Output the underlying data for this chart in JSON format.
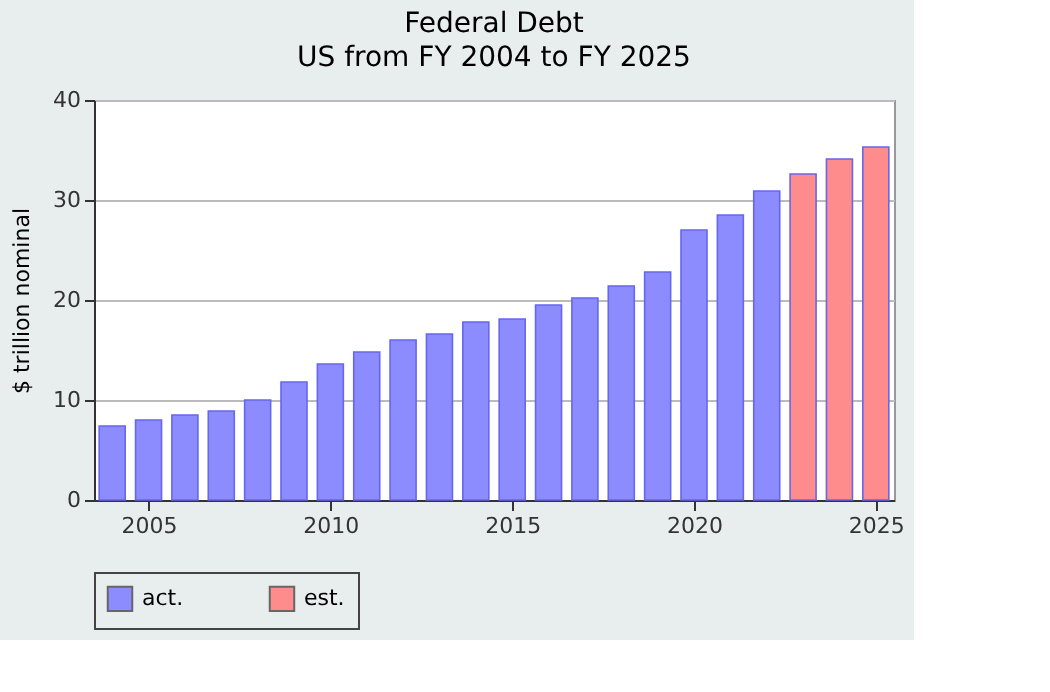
{
  "chart_data": {
    "type": "bar",
    "title": "Federal Debt",
    "subtitle": "US from FY 2004 to FY 2025",
    "ylabel": "$ trillion nominal",
    "series": [
      {
        "name": "act.",
        "color": "#8c8cff",
        "x": [
          2004,
          2005,
          2006,
          2007,
          2008,
          2009,
          2010,
          2011,
          2012,
          2013,
          2014,
          2015,
          2016,
          2017,
          2018,
          2019,
          2020,
          2021,
          2022
        ],
        "values": [
          7.4,
          8.0,
          8.5,
          8.9,
          10.0,
          11.8,
          13.6,
          14.8,
          16.0,
          16.6,
          17.8,
          18.1,
          19.5,
          20.2,
          21.4,
          22.8,
          27.0,
          28.5,
          30.9
        ]
      },
      {
        "name": "est.",
        "color": "#ff8c8c",
        "x": [
          2023,
          2024,
          2025
        ],
        "values": [
          32.6,
          34.1,
          35.3
        ]
      }
    ],
    "xlim": [
      2003.5,
      2025.5
    ],
    "xticks": [
      2005,
      2010,
      2015,
      2020,
      2025
    ],
    "ylim": [
      0,
      40
    ],
    "yticks": [
      0,
      10,
      20,
      30,
      40
    ],
    "grid": "y",
    "legend": "bottom"
  }
}
